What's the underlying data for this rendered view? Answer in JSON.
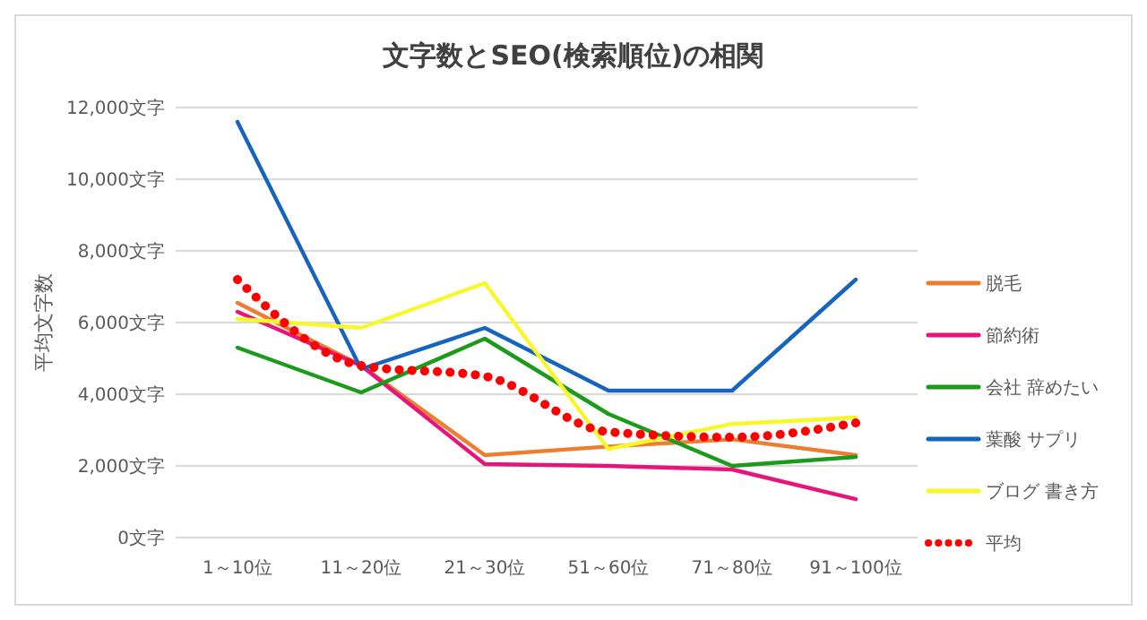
{
  "chart_data": {
    "type": "line",
    "title": "文字数とSEO(検索順位)の相関",
    "ylabel": "平均文字数",
    "categories": [
      "1～10位",
      "11～20位",
      "21～30位",
      "51～60位",
      "71～80位",
      "91～100位"
    ],
    "series": [
      {
        "name": "脱毛",
        "color": "#ed7d31",
        "values": [
          6550,
          4800,
          2300,
          2540,
          2740,
          2300
        ]
      },
      {
        "name": "節約術",
        "color": "#e6157a",
        "values": [
          6300,
          4800,
          2050,
          2000,
          1900,
          1070
        ]
      },
      {
        "name": "会社 辞めたい",
        "color": "#1b9a1b",
        "values": [
          5300,
          4050,
          5550,
          3450,
          2000,
          2250
        ]
      },
      {
        "name": "葉酸 サプリ",
        "color": "#1565c0",
        "values": [
          11600,
          4700,
          5850,
          4100,
          4100,
          7200
        ]
      },
      {
        "name": "ブログ 書き方",
        "color": "#f7f72a",
        "values": [
          6100,
          5850,
          7100,
          2470,
          3170,
          3350
        ]
      },
      {
        "name": "平均",
        "color": "#ff0000",
        "line_style": "dotted",
        "values": [
          7200,
          4800,
          4500,
          2950,
          2800,
          3200
        ]
      }
    ],
    "ylim": [
      0,
      12000
    ],
    "yticks": [
      {
        "value": 0,
        "label": "0文字"
      },
      {
        "value": 2000,
        "label": "2,000文字"
      },
      {
        "value": 4000,
        "label": "4,000文字"
      },
      {
        "value": 6000,
        "label": "6,000文字"
      },
      {
        "value": 8000,
        "label": "8,000文字"
      },
      {
        "value": 10000,
        "label": "10,000文字"
      },
      {
        "value": 12000,
        "label": "12,000文字"
      }
    ],
    "grid": "y",
    "legend": "right",
    "marker": "none",
    "line_style": "solid"
  }
}
